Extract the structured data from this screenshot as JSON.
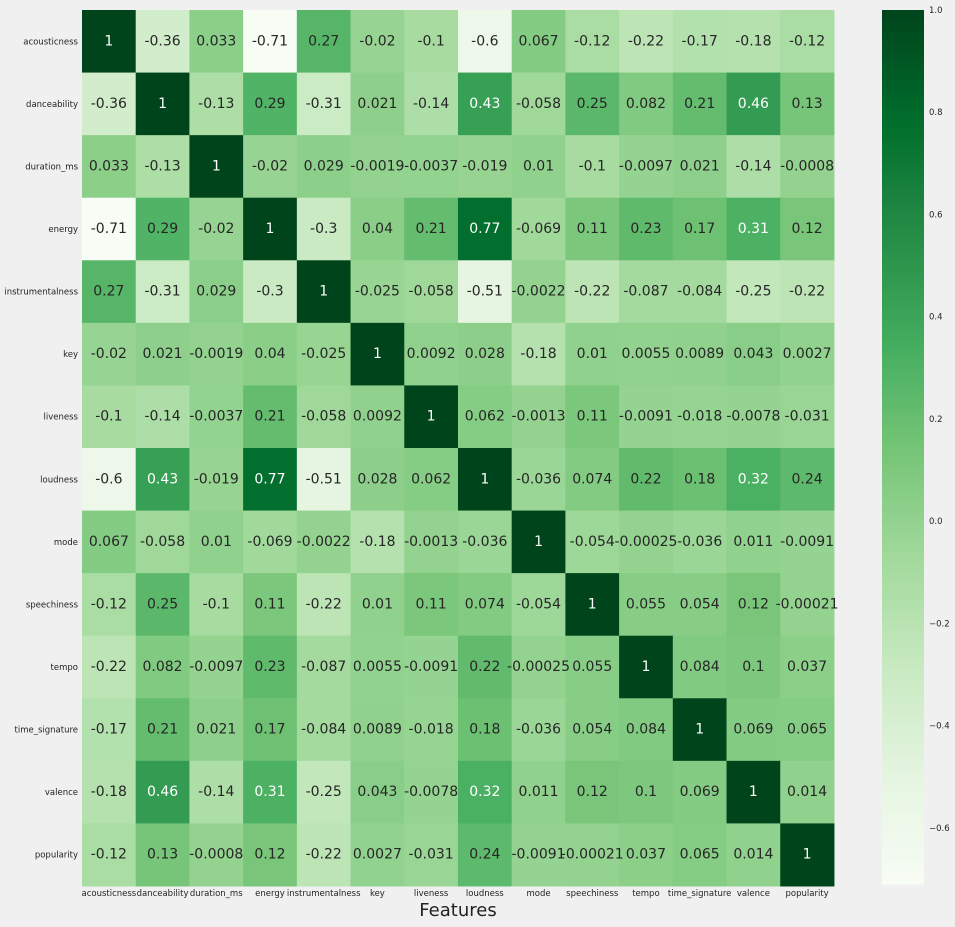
{
  "chart_data": {
    "type": "heatmap",
    "title": "",
    "xlabel": "Features",
    "ylabel": "",
    "colormap": "Greens",
    "vmin": -0.71,
    "vmax": 1.0,
    "labels": [
      "acousticness",
      "danceability",
      "duration_ms",
      "energy",
      "instrumentalness",
      "key",
      "liveness",
      "loudness",
      "mode",
      "speechiness",
      "tempo",
      "time_signature",
      "valence",
      "popularity"
    ],
    "display": [
      [
        "1",
        "-0.36",
        "0.033",
        "-0.71",
        "0.27",
        "-0.02",
        "-0.1",
        "-0.6",
        "0.067",
        "-0.12",
        "-0.22",
        "-0.17",
        "-0.18",
        "-0.12"
      ],
      [
        "-0.36",
        "1",
        "-0.13",
        "0.29",
        "-0.31",
        "0.021",
        "-0.14",
        "0.43",
        "-0.058",
        "0.25",
        "0.082",
        "0.21",
        "0.46",
        "0.13"
      ],
      [
        "0.033",
        "-0.13",
        "1",
        "-0.02",
        "0.029",
        "-0.0019",
        "-0.0037",
        "-0.019",
        "0.01",
        "-0.1",
        "-0.0097",
        "0.021",
        "-0.14",
        "-0.0008"
      ],
      [
        "-0.71",
        "0.29",
        "-0.02",
        "1",
        "-0.3",
        "0.04",
        "0.21",
        "0.77",
        "-0.069",
        "0.11",
        "0.23",
        "0.17",
        "0.31",
        "0.12"
      ],
      [
        "0.27",
        "-0.31",
        "0.029",
        "-0.3",
        "1",
        "-0.025",
        "-0.058",
        "-0.51",
        "-0.0022",
        "-0.22",
        "-0.087",
        "-0.084",
        "-0.25",
        "-0.22"
      ],
      [
        "-0.02",
        "0.021",
        "-0.0019",
        "0.04",
        "-0.025",
        "1",
        "0.0092",
        "0.028",
        "-0.18",
        "0.01",
        "0.0055",
        "0.0089",
        "0.043",
        "0.0027"
      ],
      [
        "-0.1",
        "-0.14",
        "-0.0037",
        "0.21",
        "-0.058",
        "0.0092",
        "1",
        "0.062",
        "-0.0013",
        "0.11",
        "-0.0091",
        "-0.018",
        "-0.0078",
        "-0.031"
      ],
      [
        "-0.6",
        "0.43",
        "-0.019",
        "0.77",
        "-0.51",
        "0.028",
        "0.062",
        "1",
        "-0.036",
        "0.074",
        "0.22",
        "0.18",
        "0.32",
        "0.24"
      ],
      [
        "0.067",
        "-0.058",
        "0.01",
        "-0.069",
        "-0.0022",
        "-0.18",
        "-0.0013",
        "-0.036",
        "1",
        "-0.054",
        "-0.00025",
        "-0.036",
        "0.011",
        "-0.0091"
      ],
      [
        "-0.12",
        "0.25",
        "-0.1",
        "0.11",
        "-0.22",
        "0.01",
        "0.11",
        "0.074",
        "-0.054",
        "1",
        "0.055",
        "0.054",
        "0.12",
        "-0.00021"
      ],
      [
        "-0.22",
        "0.082",
        "-0.0097",
        "0.23",
        "-0.087",
        "0.0055",
        "-0.0091",
        "0.22",
        "-0.00025",
        "0.055",
        "1",
        "0.084",
        "0.1",
        "0.037"
      ],
      [
        "-0.17",
        "0.21",
        "0.021",
        "0.17",
        "-0.084",
        "0.0089",
        "-0.018",
        "0.18",
        "-0.036",
        "0.054",
        "0.084",
        "1",
        "0.069",
        "0.065"
      ],
      [
        "-0.18",
        "0.46",
        "-0.14",
        "0.31",
        "-0.25",
        "0.043",
        "-0.0078",
        "0.32",
        "0.011",
        "0.12",
        "0.1",
        "0.069",
        "1",
        "0.014"
      ],
      [
        "-0.12",
        "0.13",
        "-0.0008",
        "0.12",
        "-0.22",
        "0.0027",
        "-0.031",
        "0.24",
        "-0.0091",
        "-0.00021",
        "0.037",
        "0.065",
        "0.014",
        "1"
      ]
    ],
    "colorbar_ticks": [
      "1.0",
      "0.8",
      "0.6",
      "0.4",
      "0.2",
      "0.0",
      "−0.2",
      "−0.4",
      "−0.6"
    ]
  }
}
